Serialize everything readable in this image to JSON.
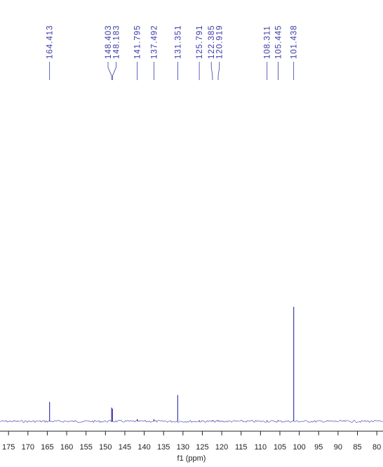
{
  "chart_data": {
    "type": "spectrum",
    "x": [
      164.413,
      148.403,
      148.183,
      141.795,
      137.492,
      131.351,
      125.791,
      122.385,
      120.919,
      108.311,
      105.445,
      101.438
    ],
    "values": [
      17,
      12,
      11,
      2,
      2,
      23,
      1,
      1,
      1,
      1,
      1,
      100
    ],
    "color": "#3a3aa8",
    "xlim": [
      177.2,
      78.4
    ],
    "xticks": [
      175,
      170,
      165,
      160,
      155,
      150,
      145,
      140,
      135,
      130,
      125,
      120,
      115,
      110,
      105,
      100,
      95,
      90,
      85,
      80
    ],
    "ylim": [
      0,
      100
    ],
    "xlabel": "f1 (ppm)"
  }
}
